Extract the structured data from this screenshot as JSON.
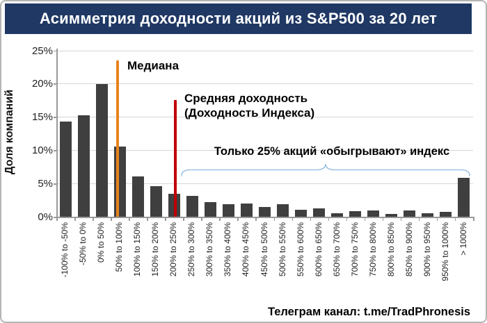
{
  "chart_data": {
    "type": "bar",
    "title": "Асимметрия доходности акций из S&P500 за 20 лет",
    "title_bg": "#1f3864",
    "ylabel": "Доля компаний",
    "yticks": [
      "0%",
      "5%",
      "10%",
      "15%",
      "20%",
      "25%"
    ],
    "ylim": [
      0,
      25
    ],
    "grid": true,
    "legend": "none",
    "bar_color": "#3f3f3f",
    "categories": [
      "-100% to -50%",
      "-50% to 0%",
      "0% to 50%",
      "50% to 100%",
      "100% to 150%",
      "150% to 200%",
      "200% to 250%",
      "250% to 300%",
      "300% to 350%",
      "350% to 400%",
      "400% to 450%",
      "450% to 500%",
      "500% to 550%",
      "550% to 600%",
      "600% to 650%",
      "650% to 700%",
      "700% to 750%",
      "750% to 800%",
      "800% to 850%",
      "850% to 900%",
      "900% to 950%",
      "950% to 1000%",
      "> 1000%"
    ],
    "values": [
      14.3,
      15.2,
      19.9,
      10.5,
      6.1,
      4.6,
      3.4,
      3.1,
      2.2,
      1.9,
      2.0,
      1.5,
      1.9,
      1.0,
      1.3,
      0.5,
      0.8,
      0.9,
      0.4,
      0.9,
      0.5,
      0.7,
      5.8
    ],
    "annotations": {
      "median": {
        "label": "Медиана",
        "color": "#e8821e",
        "x_category": "50% to 100%"
      },
      "mean": {
        "line1": "Средняя доходность",
        "line2": "(Доходность Индекса)",
        "color": "#c00000",
        "x_category": "200% to 250%"
      },
      "beat_index": {
        "label": "Только 25% акций «обыгрывают» индекс",
        "brace_color": "#9dc3e6"
      }
    },
    "footer": "Телеграм канал: t.me/TradPhronesis"
  }
}
